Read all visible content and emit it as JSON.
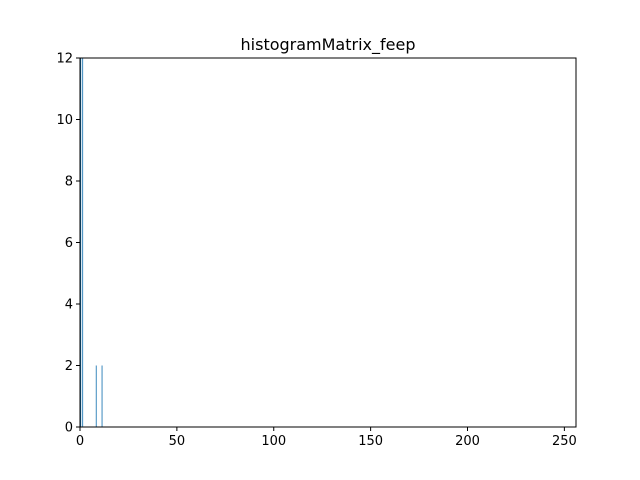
{
  "chart_data": {
    "type": "bar",
    "title": "histogramMatrix_feep",
    "xlabel": "",
    "ylabel": "",
    "xlim": [
      0,
      256
    ],
    "ylim": [
      0,
      12
    ],
    "xticks": [
      0,
      50,
      100,
      150,
      200,
      250
    ],
    "yticks": [
      0,
      2,
      4,
      6,
      8,
      10,
      12
    ],
    "grid": false,
    "bar_color": "#1f77b4",
    "bars": [
      {
        "x": 0,
        "value": 12
      },
      {
        "x": 1,
        "value": 12
      },
      {
        "x": 8,
        "value": 2
      },
      {
        "x": 11,
        "value": 2
      }
    ]
  }
}
